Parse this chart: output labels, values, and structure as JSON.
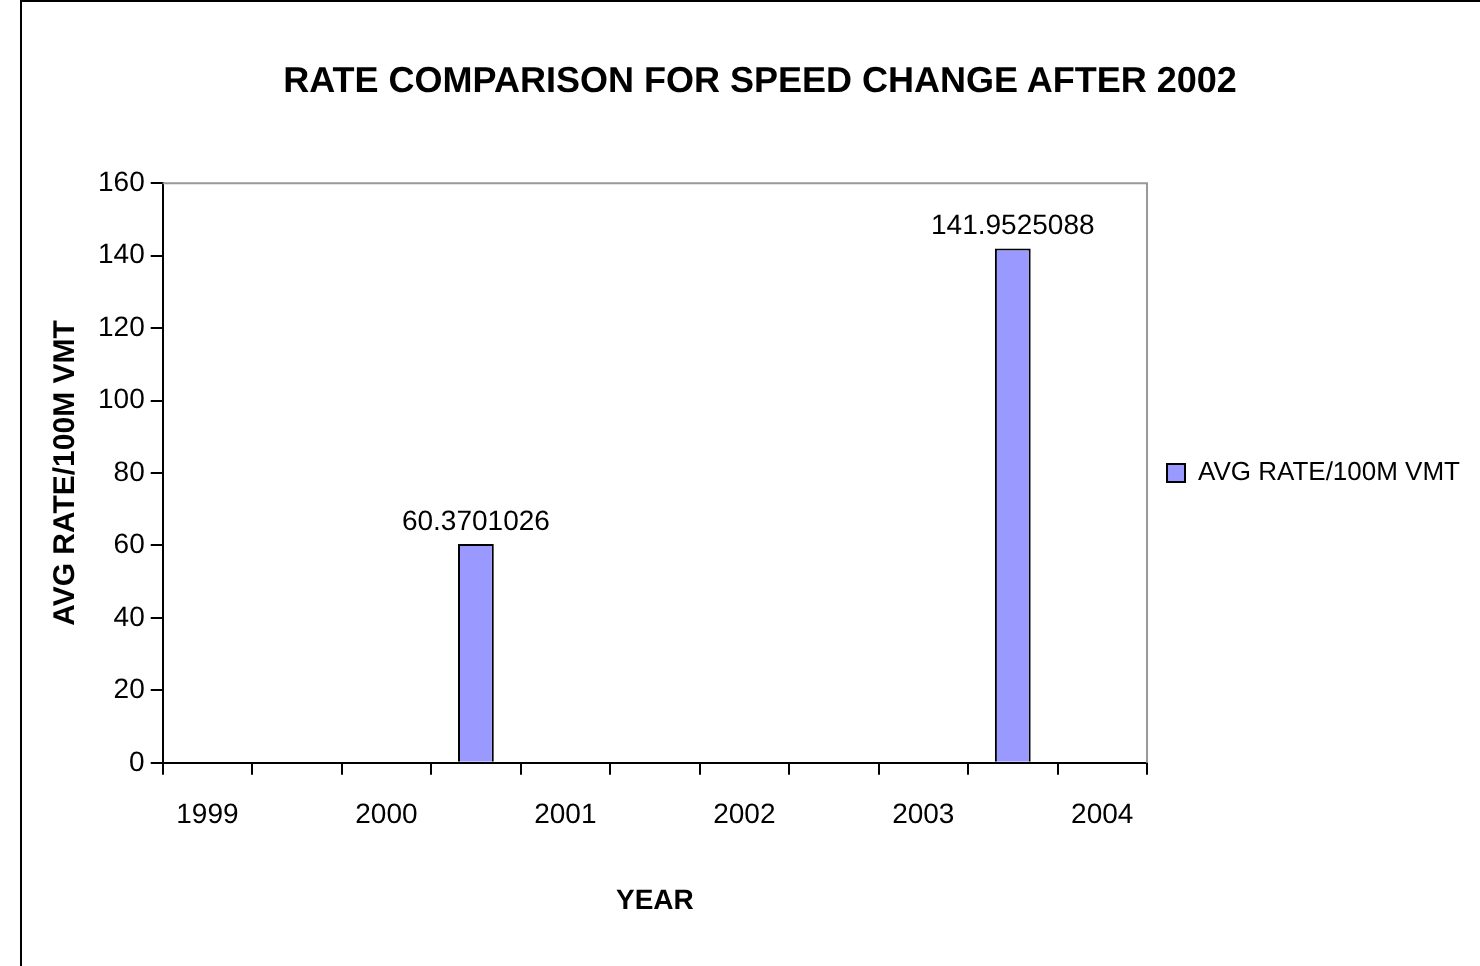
{
  "chart_data": {
    "type": "bar",
    "title": "RATE COMPARISON FOR SPEED CHANGE AFTER 2002",
    "xlabel": "YEAR",
    "ylabel": "AVG RATE/100M VMT",
    "categories": [
      "1999",
      null,
      "2000",
      null,
      "2001",
      null,
      "2002",
      null,
      "2003",
      null,
      "2004"
    ],
    "series": [
      {
        "name": "AVG RATE/100M VMT",
        "color": "#9999ff",
        "values": [
          null,
          null,
          null,
          60.3701026,
          null,
          null,
          null,
          null,
          null,
          141.9525088,
          null
        ]
      }
    ],
    "ylim": [
      0,
      160
    ],
    "yticks": [
      0,
      20,
      40,
      60,
      80,
      100,
      120,
      140,
      160
    ],
    "grid": false,
    "legend": "right",
    "data_labels": true
  }
}
